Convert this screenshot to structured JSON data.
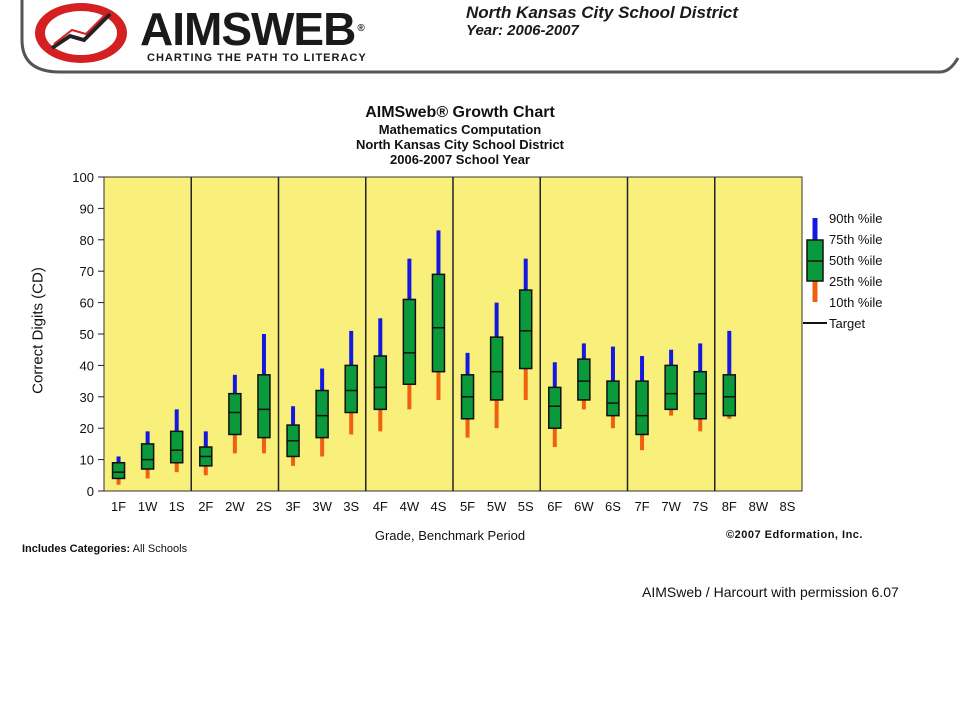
{
  "header": {
    "brand": "AIMSWEB",
    "registered": "®",
    "tagline": "CHARTING THE PATH TO LITERACY",
    "district": "North Kansas City School District",
    "year": "Year: 2006-2007"
  },
  "legend": {
    "p90": "90th %ile",
    "p75": "75th %ile",
    "p50": "50th %ile",
    "p25": "25th %ile",
    "p10": "10th %ile",
    "target": "Target"
  },
  "footer": {
    "copyright": "©2007 Edformation, Inc.",
    "includes_label": "Includes Categories:",
    "includes_value": "All Schools",
    "permission": "AIMSweb / Harcourt with permission 6.07"
  },
  "colors": {
    "plot_bg": "#f8f07a",
    "box": "#0a9a3c",
    "upper_whisker": "#1418e0",
    "lower_whisker": "#f06010",
    "logo_red": "#d42020"
  },
  "chart_data": {
    "type": "box",
    "title": "AIMSweb® Growth Chart",
    "subtitle_lines": [
      "Mathematics Computation",
      "North Kansas City School District",
      "2006-2007 School Year"
    ],
    "xlabel": "Grade, Benchmark Period",
    "ylabel": "Correct Digits (CD)",
    "ylim": [
      0,
      100
    ],
    "yticks": [
      0,
      10,
      20,
      30,
      40,
      50,
      60,
      70,
      80,
      90,
      100
    ],
    "grid": false,
    "legend_position": "right",
    "categories": [
      "1F",
      "1W",
      "1S",
      "2F",
      "2W",
      "2S",
      "3F",
      "3W",
      "3S",
      "4F",
      "4W",
      "4S",
      "5F",
      "5W",
      "5S",
      "6F",
      "6W",
      "6S",
      "7F",
      "7W",
      "7S",
      "8F",
      "8W",
      "8S"
    ],
    "p10": [
      2,
      4,
      6,
      5,
      12,
      12,
      8,
      11,
      18,
      19,
      26,
      29,
      17,
      20,
      29,
      14,
      26,
      20,
      13,
      24,
      19,
      23,
      null,
      null
    ],
    "p25": [
      4,
      7,
      9,
      8,
      18,
      17,
      11,
      17,
      25,
      26,
      34,
      38,
      23,
      29,
      39,
      20,
      29,
      24,
      18,
      26,
      23,
      24,
      null,
      null
    ],
    "p50": [
      6,
      10,
      13,
      11,
      25,
      26,
      16,
      24,
      32,
      33,
      44,
      52,
      30,
      38,
      51,
      27,
      35,
      28,
      24,
      31,
      31,
      30,
      null,
      null
    ],
    "p75": [
      9,
      15,
      19,
      14,
      31,
      37,
      21,
      32,
      40,
      43,
      61,
      69,
      37,
      49,
      64,
      33,
      42,
      35,
      35,
      40,
      38,
      37,
      null,
      null
    ],
    "p90": [
      11,
      19,
      26,
      19,
      37,
      50,
      27,
      39,
      51,
      55,
      74,
      83,
      44,
      60,
      74,
      41,
      47,
      46,
      43,
      45,
      47,
      51,
      null,
      null
    ]
  }
}
